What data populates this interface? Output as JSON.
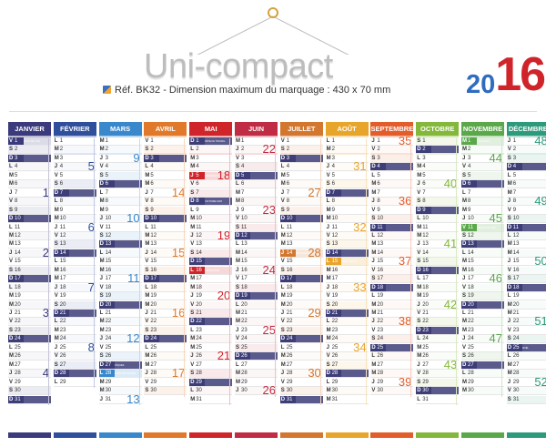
{
  "header": {
    "title": "Uni-compact",
    "reference": "Réf. BK32 - Dimension maximum du marquage : 430 x 70 mm",
    "year_prefix": "20",
    "year_suffix": "16"
  },
  "colors": {
    "title_grey": "#bdbdbd",
    "year_blue": "#2f6cc0",
    "year_red": "#d0242b",
    "sunday_band_navy": "#3d3d78"
  },
  "year": 2016,
  "months": [
    {
      "name": "JANVIER",
      "color": "#3a3a7c",
      "holidays": [
        1
      ]
    },
    {
      "name": "FÉVRIER",
      "color": "#2f4f9c",
      "holidays": []
    },
    {
      "name": "MARS",
      "color": "#3a88cc",
      "holidays": [
        28
      ]
    },
    {
      "name": "AVRIL",
      "color": "#e07a2a",
      "holidays": []
    },
    {
      "name": "MAI",
      "color": "#d0242b",
      "holidays": [
        1,
        5,
        8,
        16
      ]
    },
    {
      "name": "JUIN",
      "color": "#c02c43",
      "holidays": []
    },
    {
      "name": "JUILLET",
      "color": "#d3772f",
      "holidays": [
        14
      ]
    },
    {
      "name": "AOÛT",
      "color": "#e8a52c",
      "holidays": [
        15
      ]
    },
    {
      "name": "SEPTEMBRE",
      "color": "#e25d2a",
      "holidays": []
    },
    {
      "name": "OCTOBRE",
      "color": "#84b83a",
      "holidays": []
    },
    {
      "name": "NOVEMBRE",
      "color": "#5aa84a",
      "holidays": [
        1,
        11
      ]
    },
    {
      "name": "DÉCEMBRE",
      "color": "#2e9a7c",
      "holidays": [
        25
      ]
    }
  ],
  "day_letters": [
    "D",
    "L",
    "M",
    "M",
    "J",
    "V",
    "S"
  ],
  "saints": {
    "1-1": "JOUR DE L'AN",
    "5-1": "FÊTE DU TRAVAIL",
    "5-8": "VICTOIRE 1945",
    "5-5": "ASCENSION",
    "5-16": "PENTECÔTE",
    "3-27": "PÂQUES",
    "3-28": "LUNDI DE PÂQUES",
    "7-14": "FÊTE NATIONALE",
    "8-15": "ASSOMPTION",
    "11-1": "TOUSSAINT",
    "11-11": "ARMISTICE 1918",
    "12-25": "NOËL"
  }
}
